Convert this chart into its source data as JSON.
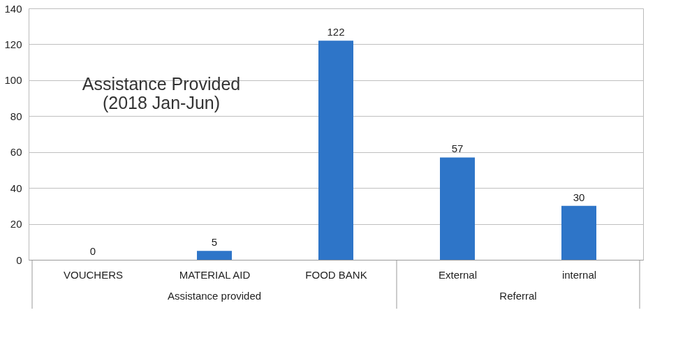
{
  "chart_data": {
    "type": "bar",
    "title": "Assistance Provided\n(2018 Jan-Jun)",
    "categories": [
      "VOUCHERS",
      "MATERIAL AID",
      "FOOD BANK",
      "External",
      "internal"
    ],
    "values": [
      0,
      5,
      122,
      57,
      30
    ],
    "color": "#2e75c8",
    "ylim": [
      0,
      140
    ],
    "yticks": [
      0,
      20,
      40,
      60,
      80,
      100,
      120,
      140
    ],
    "grid": "y",
    "data_labels": true,
    "annotations": [
      "Assistance provided",
      "Referral"
    ]
  }
}
